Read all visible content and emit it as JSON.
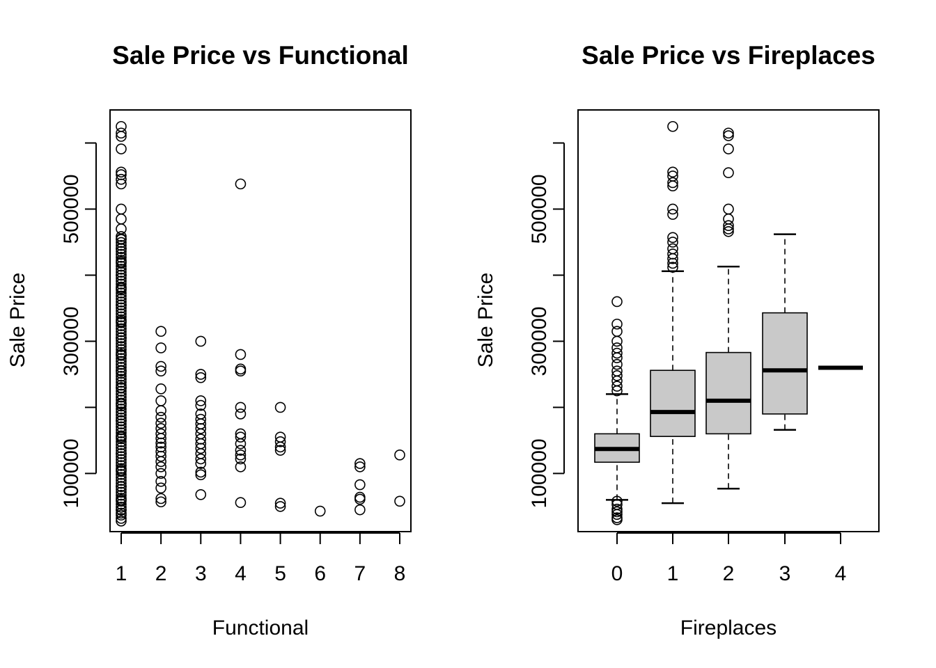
{
  "chart_data": [
    {
      "type": "scatter",
      "title": "Sale Price vs Functional",
      "xlabel": "Functional",
      "ylabel": "Sale Price",
      "x_ticks": [
        "1",
        "2",
        "3",
        "4",
        "5",
        "6",
        "7",
        "8"
      ],
      "y_ticks": [
        "100000",
        "300000",
        "500000"
      ],
      "xlim": [
        0.72,
        8.28
      ],
      "ylim": [
        12000,
        650000
      ],
      "points": [
        {
          "x": 1,
          "y": 625000
        },
        {
          "x": 1,
          "y": 615000
        },
        {
          "x": 1,
          "y": 610000
        },
        {
          "x": 1,
          "y": 591000
        },
        {
          "x": 1,
          "y": 556000
        },
        {
          "x": 1,
          "y": 552000
        },
        {
          "x": 1,
          "y": 545000
        },
        {
          "x": 1,
          "y": 538000
        },
        {
          "x": 1,
          "y": 500000
        },
        {
          "x": 1,
          "y": 485000
        },
        {
          "x": 1,
          "y": 470000
        },
        {
          "x": 1,
          "y": 455000
        },
        {
          "x": 1,
          "y": 440000
        },
        {
          "x": 1,
          "y": 420000
        },
        {
          "x": 1,
          "y": 400000
        },
        {
          "x": 1,
          "y": 380000
        },
        {
          "x": 1,
          "y": 355000
        },
        {
          "x": 1,
          "y": 330000
        },
        {
          "x": 1,
          "y": 305000
        },
        {
          "x": 1,
          "y": 280000
        },
        {
          "x": 1,
          "y": 255000
        },
        {
          "x": 1,
          "y": 230000
        },
        {
          "x": 1,
          "y": 205000
        },
        {
          "x": 1,
          "y": 180000
        },
        {
          "x": 1,
          "y": 155000
        },
        {
          "x": 1,
          "y": 130000
        },
        {
          "x": 1,
          "y": 105000
        },
        {
          "x": 1,
          "y": 80000
        },
        {
          "x": 1,
          "y": 60000
        },
        {
          "x": 1,
          "y": 45000
        },
        {
          "x": 1,
          "y": 37000
        },
        {
          "x": 1,
          "y": 32000
        },
        {
          "x": 1,
          "y": 28000
        },
        {
          "x": 2,
          "y": 315000
        },
        {
          "x": 2,
          "y": 290000
        },
        {
          "x": 2,
          "y": 262000
        },
        {
          "x": 2,
          "y": 255000
        },
        {
          "x": 2,
          "y": 228000
        },
        {
          "x": 2,
          "y": 210000
        },
        {
          "x": 2,
          "y": 195000
        },
        {
          "x": 2,
          "y": 185000
        },
        {
          "x": 2,
          "y": 176000
        },
        {
          "x": 2,
          "y": 168000
        },
        {
          "x": 2,
          "y": 160000
        },
        {
          "x": 2,
          "y": 153000
        },
        {
          "x": 2,
          "y": 146000
        },
        {
          "x": 2,
          "y": 140000
        },
        {
          "x": 2,
          "y": 133000
        },
        {
          "x": 2,
          "y": 126000
        },
        {
          "x": 2,
          "y": 118000
        },
        {
          "x": 2,
          "y": 110000
        },
        {
          "x": 2,
          "y": 100000
        },
        {
          "x": 2,
          "y": 88000
        },
        {
          "x": 2,
          "y": 78000
        },
        {
          "x": 2,
          "y": 62000
        },
        {
          "x": 2,
          "y": 57000
        },
        {
          "x": 3,
          "y": 300000
        },
        {
          "x": 3,
          "y": 250000
        },
        {
          "x": 3,
          "y": 245000
        },
        {
          "x": 3,
          "y": 210000
        },
        {
          "x": 3,
          "y": 203000
        },
        {
          "x": 3,
          "y": 190000
        },
        {
          "x": 3,
          "y": 182000
        },
        {
          "x": 3,
          "y": 175000
        },
        {
          "x": 3,
          "y": 168000
        },
        {
          "x": 3,
          "y": 160000
        },
        {
          "x": 3,
          "y": 152000
        },
        {
          "x": 3,
          "y": 145000
        },
        {
          "x": 3,
          "y": 138000
        },
        {
          "x": 3,
          "y": 130000
        },
        {
          "x": 3,
          "y": 122000
        },
        {
          "x": 3,
          "y": 115000
        },
        {
          "x": 3,
          "y": 102000
        },
        {
          "x": 3,
          "y": 98000
        },
        {
          "x": 3,
          "y": 68000
        },
        {
          "x": 4,
          "y": 538000
        },
        {
          "x": 4,
          "y": 280000
        },
        {
          "x": 4,
          "y": 258000
        },
        {
          "x": 4,
          "y": 255000
        },
        {
          "x": 4,
          "y": 200000
        },
        {
          "x": 4,
          "y": 190000
        },
        {
          "x": 4,
          "y": 160000
        },
        {
          "x": 4,
          "y": 155000
        },
        {
          "x": 4,
          "y": 145000
        },
        {
          "x": 4,
          "y": 135000
        },
        {
          "x": 4,
          "y": 128000
        },
        {
          "x": 4,
          "y": 122000
        },
        {
          "x": 4,
          "y": 110000
        },
        {
          "x": 4,
          "y": 56000
        },
        {
          "x": 5,
          "y": 200000
        },
        {
          "x": 5,
          "y": 155000
        },
        {
          "x": 5,
          "y": 148000
        },
        {
          "x": 5,
          "y": 140000
        },
        {
          "x": 5,
          "y": 135000
        },
        {
          "x": 5,
          "y": 55000
        },
        {
          "x": 5,
          "y": 50000
        },
        {
          "x": 6,
          "y": 43000
        },
        {
          "x": 7,
          "y": 115000
        },
        {
          "x": 7,
          "y": 110000
        },
        {
          "x": 7,
          "y": 83000
        },
        {
          "x": 7,
          "y": 64000
        },
        {
          "x": 7,
          "y": 61000
        },
        {
          "x": 7,
          "y": 45000
        },
        {
          "x": 8,
          "y": 128000
        },
        {
          "x": 8,
          "y": 58000
        }
      ]
    },
    {
      "type": "box",
      "title": "Sale Price vs Fireplaces",
      "xlabel": "Fireplaces",
      "ylabel": "Sale Price",
      "categories": [
        "0",
        "1",
        "2",
        "3",
        "4"
      ],
      "y_ticks": [
        "100000",
        "300000",
        "500000"
      ],
      "ylim": [
        12000,
        650000
      ],
      "boxes": [
        {
          "category": "0",
          "whisker_low": 60000,
          "q1": 117000,
          "median": 137000,
          "q3": 160000,
          "whisker_high": 220000,
          "outliers": [
            360000,
            326000,
            315000,
            300000,
            290000,
            282000,
            275000,
            265000,
            255000,
            248000,
            240000,
            232000,
            225000,
            58000,
            53000,
            46000,
            42000,
            38000,
            33000,
            30000
          ]
        },
        {
          "category": "1",
          "whisker_low": 55000,
          "q1": 156000,
          "median": 193000,
          "q3": 256000,
          "whisker_high": 406000,
          "outliers": [
            625000,
            556000,
            550000,
            540000,
            535000,
            500000,
            492000,
            457000,
            450000,
            440000,
            432000,
            425000,
            418000,
            412000
          ]
        },
        {
          "category": "2",
          "whisker_low": 77000,
          "q1": 160000,
          "median": 210000,
          "q3": 283000,
          "whisker_high": 413000,
          "outliers": [
            615000,
            611000,
            591000,
            555000,
            500000,
            485000,
            475000,
            470000,
            466000
          ]
        },
        {
          "category": "3",
          "whisker_low": 166000,
          "q1": 190000,
          "median": 256000,
          "q3": 343000,
          "whisker_high": 462000,
          "outliers": []
        },
        {
          "category": "4",
          "whisker_low": 260000,
          "q1": 260000,
          "median": 260000,
          "q3": 260000,
          "whisker_high": 260000,
          "outliers": []
        }
      ],
      "box_fill": "#c9c9c9"
    }
  ]
}
